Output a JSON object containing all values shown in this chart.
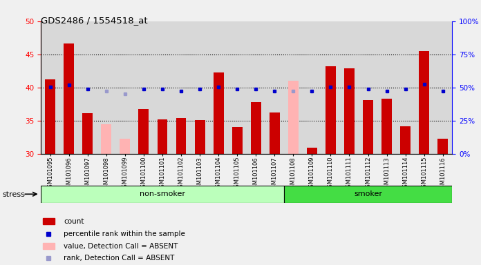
{
  "title": "GDS2486 / 1554518_at",
  "samples": [
    "GSM101095",
    "GSM101096",
    "GSM101097",
    "GSM101098",
    "GSM101099",
    "GSM101100",
    "GSM101101",
    "GSM101102",
    "GSM101103",
    "GSM101104",
    "GSM101105",
    "GSM101106",
    "GSM101107",
    "GSM101108",
    "GSM101109",
    "GSM101110",
    "GSM101111",
    "GSM101112",
    "GSM101113",
    "GSM101114",
    "GSM101115",
    "GSM101116"
  ],
  "count_values": [
    41.2,
    46.6,
    36.1,
    34.5,
    32.3,
    36.7,
    35.2,
    35.4,
    35.1,
    42.3,
    34.0,
    37.8,
    36.2,
    41.0,
    30.9,
    43.2,
    42.9,
    38.1,
    38.3,
    34.1,
    45.5,
    32.3
  ],
  "absent_flag": [
    false,
    false,
    false,
    true,
    true,
    false,
    false,
    false,
    false,
    false,
    false,
    false,
    false,
    true,
    false,
    false,
    false,
    false,
    false,
    false,
    false,
    false
  ],
  "percentile_values_left": [
    40.1,
    40.4,
    39.8,
    39.4,
    39.0,
    39.8,
    39.8,
    39.4,
    39.8,
    40.1,
    39.8,
    39.8,
    39.4,
    39.4,
    39.4,
    40.1,
    40.1,
    39.8,
    39.4,
    39.8,
    40.5,
    39.4
  ],
  "non_smoker_count": 13,
  "left_ylim": [
    30,
    50
  ],
  "right_ylim": [
    0,
    100
  ],
  "left_yticks": [
    30,
    35,
    40,
    45,
    50
  ],
  "right_yticks": [
    0,
    25,
    50,
    75,
    100
  ],
  "bar_color_normal": "#cc0000",
  "bar_color_absent": "#ffb3b3",
  "dot_color_normal": "#0000cc",
  "dot_color_absent": "#9999cc",
  "nonsmoker_color": "#bbffbb",
  "smoker_color": "#44dd44",
  "group_label_nonsmoker": "non-smoker",
  "group_label_smoker": "smoker",
  "stress_label": "stress",
  "bg_color": "#f0f0f0",
  "plot_bg_color": "#ffffff",
  "col_bg_color": "#d8d8d8"
}
